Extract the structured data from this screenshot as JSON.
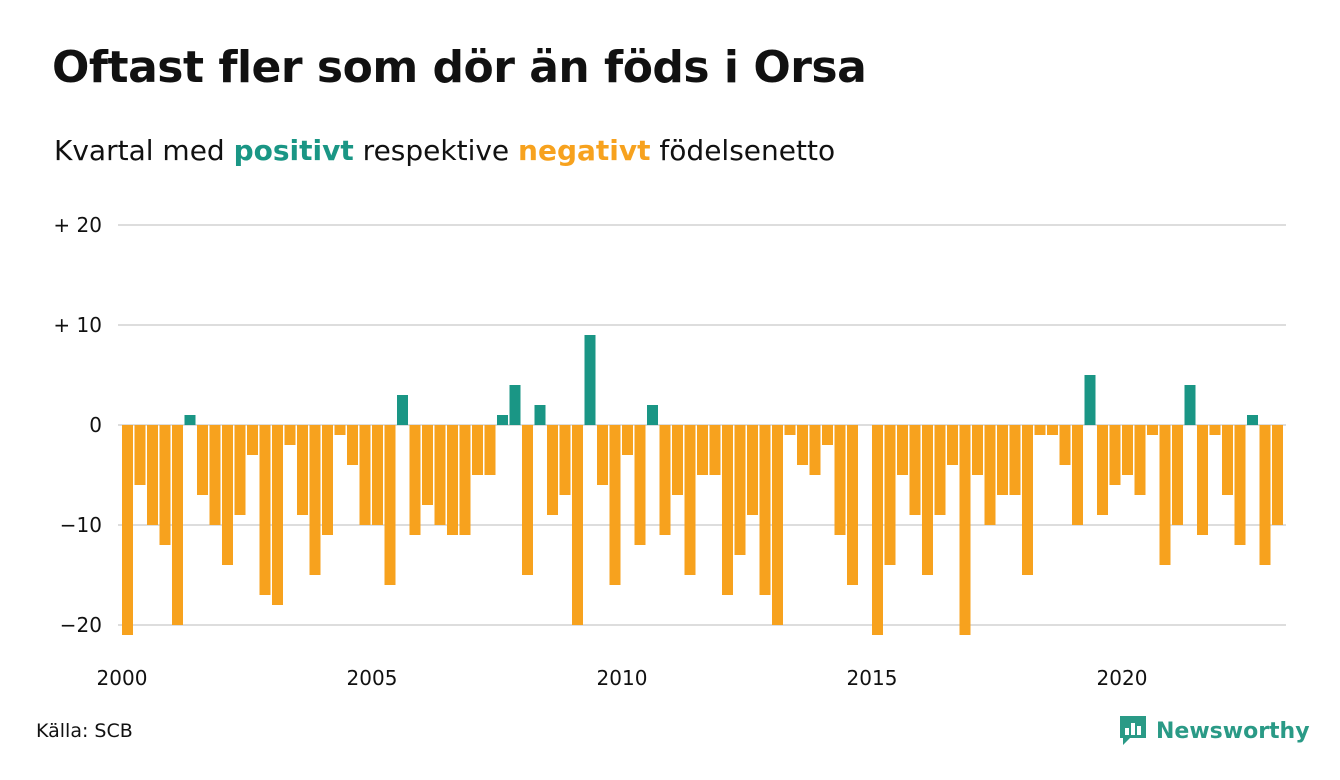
{
  "title": "Oftast fler som dör än föds i Orsa",
  "subtitle": {
    "prefix": "Kvartal med ",
    "positive_word": "positivt",
    "middle": " respektive ",
    "negative_word": "negativt",
    "suffix": " födelsenetto"
  },
  "source": "Källa: SCB",
  "brand": {
    "name": "Newsworthy",
    "icon": "newsworthy-logo-icon"
  },
  "colors": {
    "positive": "#1a9685",
    "negative": "#f7a21e",
    "grid": "#dddddd",
    "text": "#111111",
    "brand": "#2a9a86"
  },
  "chart_data": {
    "type": "bar",
    "x_start_year": 2000,
    "periods_per_year": 4,
    "x_tick_labels": [
      "2000",
      "2005",
      "2010",
      "2015",
      "2020"
    ],
    "y_tick_labels": [
      "+ 20",
      "+ 10",
      "0",
      "−10",
      "−20"
    ],
    "y_tick_values": [
      20,
      10,
      0,
      -10,
      -20
    ],
    "ylim": [
      -21,
      20
    ],
    "grid": true,
    "values": [
      -21,
      -6,
      -10,
      -12,
      -20,
      1,
      -7,
      -10,
      -14,
      -9,
      -3,
      -17,
      -18,
      -2,
      -9,
      -15,
      -11,
      -1,
      -4,
      -10,
      -10,
      -16,
      3,
      -11,
      -8,
      -10,
      -11,
      -11,
      -5,
      -5,
      1,
      4,
      -15,
      2,
      -9,
      -7,
      -20,
      9,
      -6,
      -16,
      -3,
      -12,
      2,
      -11,
      -7,
      -15,
      -5,
      -5,
      -17,
      -13,
      -9,
      -17,
      -20,
      -1,
      -4,
      -5,
      -2,
      -11,
      -16,
      0,
      -21,
      -14,
      -5,
      -9,
      -15,
      -9,
      -4,
      -21,
      -5,
      -10,
      -7,
      -7,
      -15,
      -1,
      -1,
      -4,
      -10,
      5,
      -9,
      -6,
      -5,
      -7,
      -1,
      -14,
      -10,
      4,
      -11,
      -1,
      -7,
      -12,
      1,
      -14,
      -10
    ]
  }
}
